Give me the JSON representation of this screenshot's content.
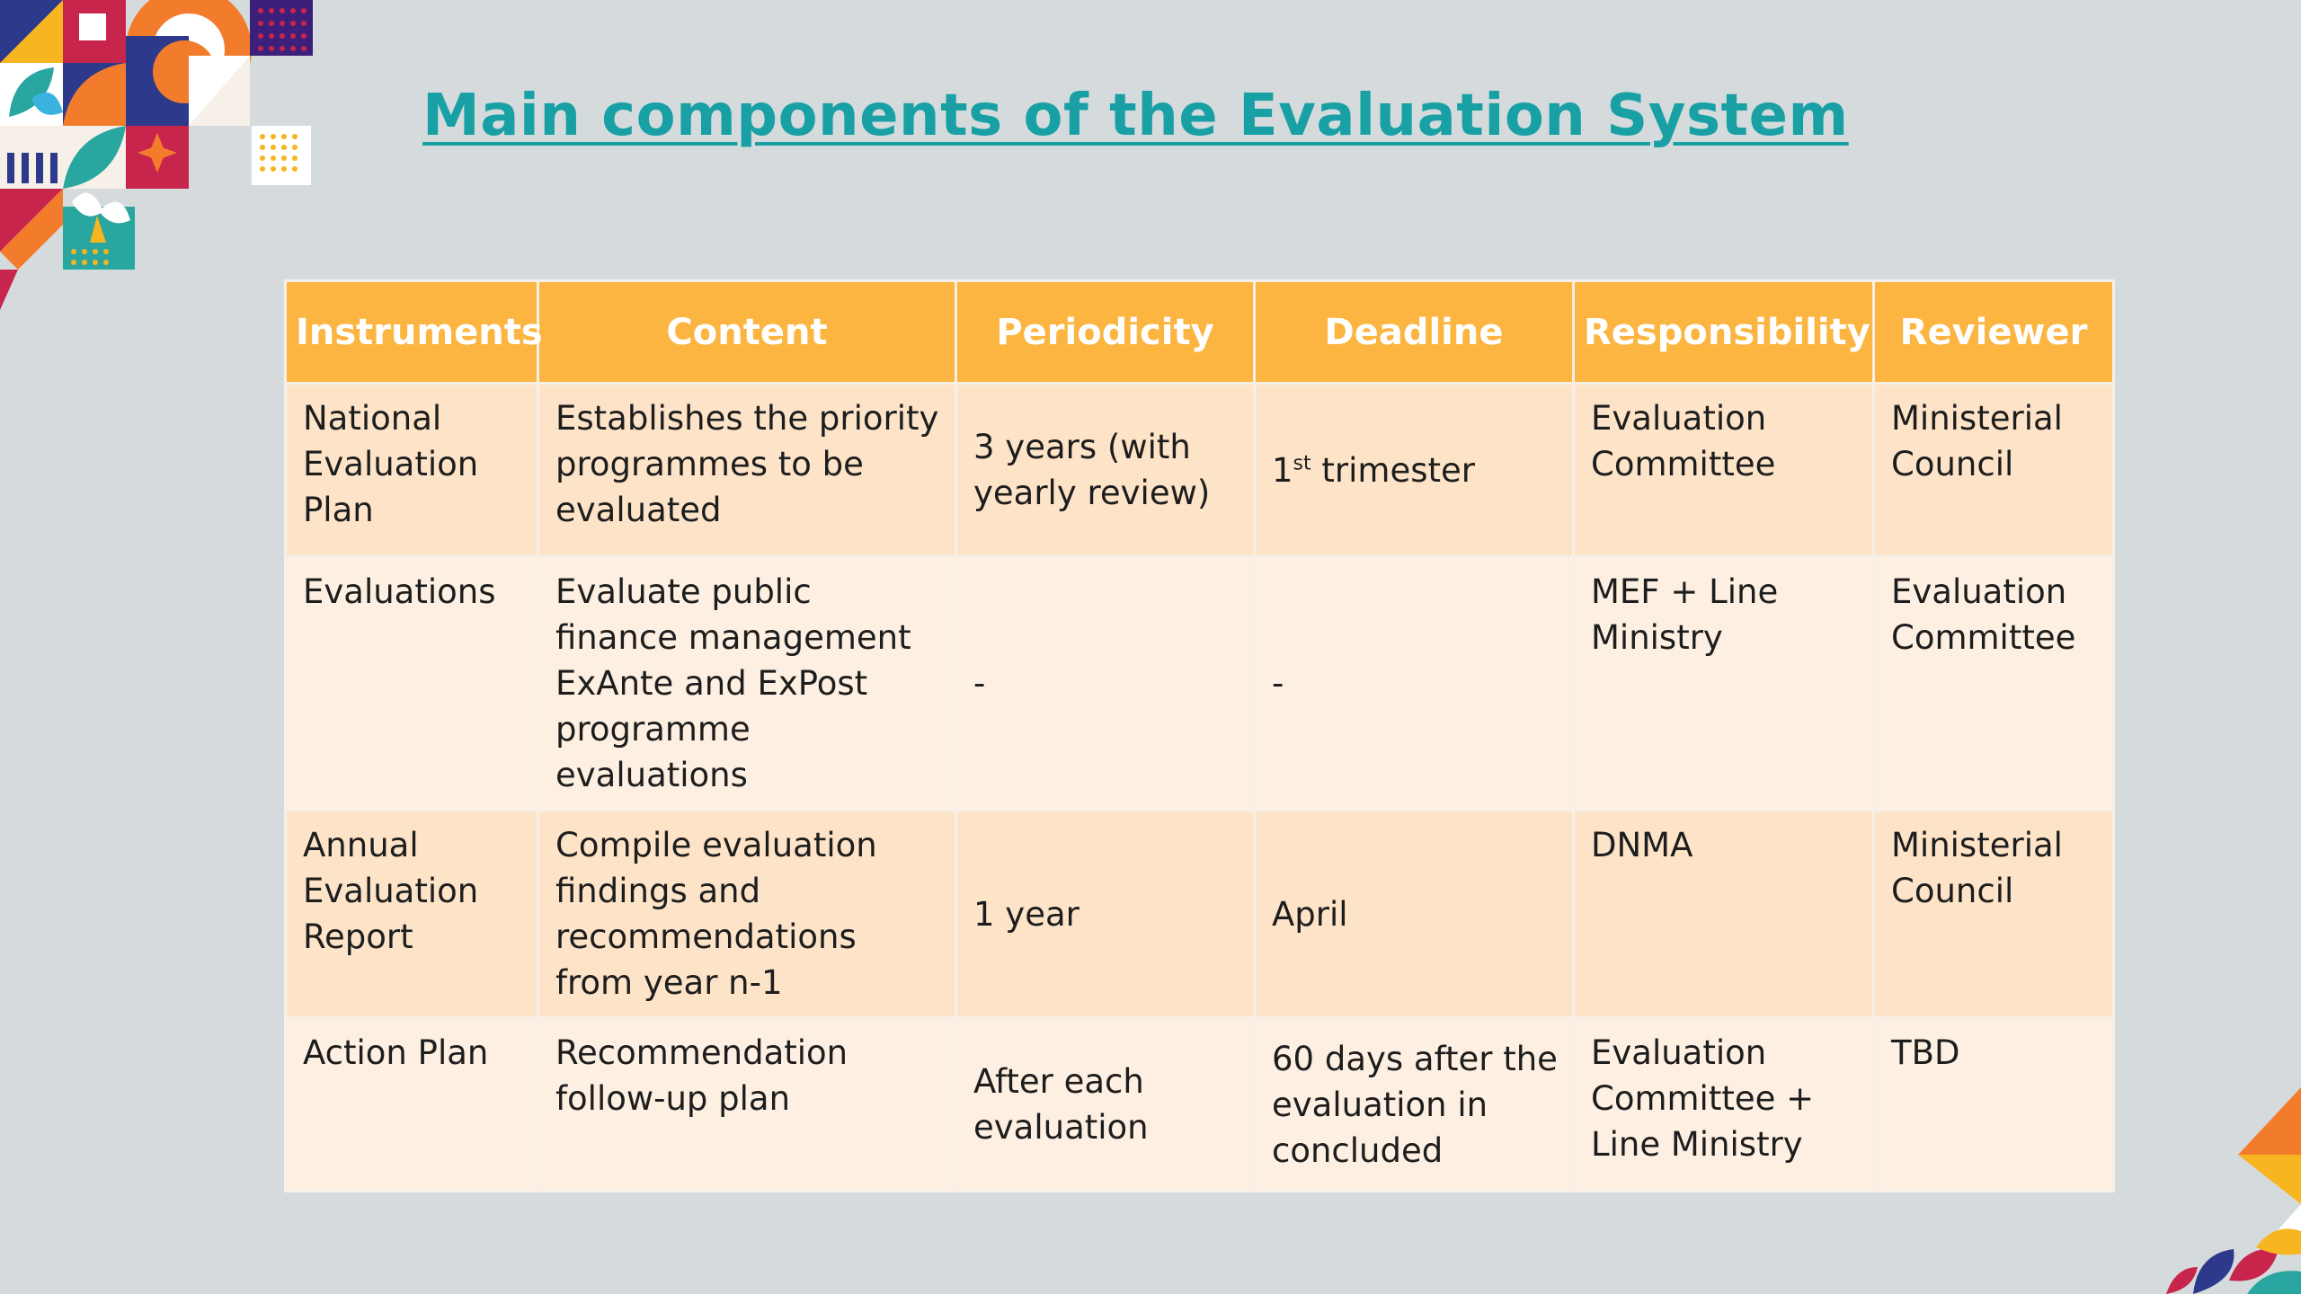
{
  "slide": {
    "title": "Main components of the Evaluation System"
  },
  "table": {
    "headers": [
      "Instruments",
      "Content",
      "Periodicity",
      "Deadline",
      "Responsibility",
      "Reviewer"
    ],
    "rows": [
      {
        "instrument": "National Evaluation Plan",
        "content": "Establishes the priority programmes to be evaluated",
        "periodicity": "3 years (with yearly review)",
        "deadline_num": "1",
        "deadline_sup": "st",
        "deadline_rest": " trimester",
        "responsibility": "Evaluation Committee",
        "reviewer": "Ministerial Council"
      },
      {
        "instrument": "Evaluations",
        "content_line1": "Evaluate public finance management",
        "content_line2": "ExAnte and ExPost programme evaluations",
        "periodicity": "-",
        "deadline": "-",
        "responsibility": "MEF + Line Ministry",
        "reviewer": "Evaluation Committee"
      },
      {
        "instrument": "Annual Evaluation Report",
        "content": "Compile evaluation findings and recommendations from year n-1",
        "periodicity": "1 year",
        "deadline": "April",
        "responsibility": "DNMA",
        "reviewer": "Ministerial Council"
      },
      {
        "instrument": "Action Plan",
        "content": "Recommendation follow-up plan",
        "periodicity": "After each evaluation",
        "deadline": "60 days after the evaluation in concluded",
        "responsibility": "Evaluation Committee + Line Ministry",
        "reviewer": "TBD"
      }
    ]
  },
  "colors": {
    "background": "#d5dbdc",
    "title": "#18a0a5",
    "header": "#fbb540",
    "row_band_a": "#fde4c8",
    "row_band_b": "#fdf0e2"
  },
  "decorations": {
    "top_left": "geometric-pattern-decoration",
    "bottom_right": "geometric-pattern-decoration"
  }
}
